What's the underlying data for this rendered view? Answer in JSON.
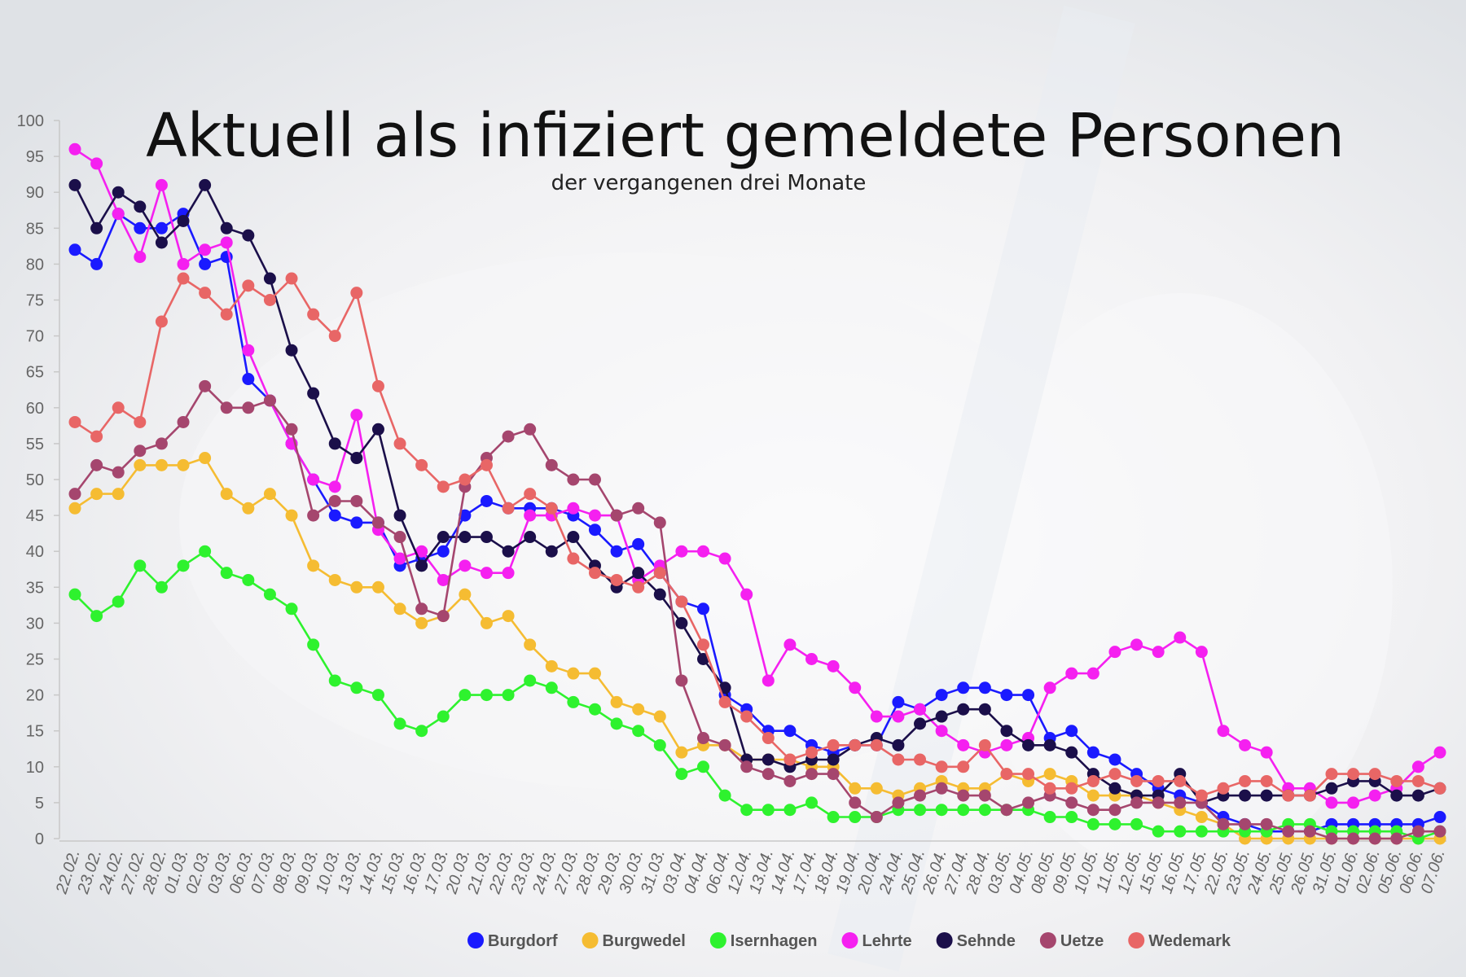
{
  "chart_data": {
    "type": "line",
    "title": "Aktuell als infiziert gemeldete Personen",
    "subtitle": "der vergangenen drei Monate",
    "xlabel": "",
    "ylabel": "",
    "ylim": [
      0,
      100
    ],
    "yticks": [
      0,
      5,
      10,
      15,
      20,
      25,
      30,
      35,
      40,
      45,
      50,
      55,
      60,
      65,
      70,
      75,
      80,
      85,
      90,
      95,
      100
    ],
    "grid": false,
    "legend_position": "bottom",
    "categories": [
      "22.02.",
      "23.02.",
      "24.02.",
      "27.02.",
      "28.02.",
      "01.03.",
      "02.03.",
      "03.03.",
      "06.03.",
      "07.03.",
      "08.03.",
      "09.03.",
      "10.03.",
      "13.03.",
      "14.03.",
      "15.03.",
      "16.03.",
      "17.03.",
      "20.03.",
      "21.03.",
      "22.03.",
      "23.03.",
      "24.03.",
      "27.03.",
      "28.03.",
      "29.03.",
      "30.03.",
      "31.03.",
      "03.04.",
      "04.04.",
      "06.04.",
      "12.04.",
      "13.04.",
      "14.04.",
      "17.04.",
      "18.04.",
      "19.04.",
      "20.04.",
      "24.04.",
      "25.04.",
      "26.04.",
      "27.04.",
      "28.04.",
      "03.05.",
      "04.05.",
      "08.05.",
      "09.05.",
      "10.05.",
      "11.05.",
      "12.05.",
      "15.05.",
      "16.05.",
      "17.05.",
      "22.05.",
      "23.05.",
      "24.05.",
      "25.05.",
      "26.05.",
      "31.05.",
      "01.06.",
      "02.06.",
      "05.06.",
      "06.06.",
      "07.06."
    ],
    "series": [
      {
        "name": "Burgdorf",
        "color": "#1a1aff",
        "values": [
          82,
          80,
          87,
          85,
          85,
          87,
          80,
          81,
          64,
          61,
          55,
          50,
          45,
          44,
          44,
          38,
          39,
          40,
          45,
          47,
          46,
          46,
          46,
          45,
          43,
          40,
          41,
          37,
          33,
          32,
          20,
          18,
          15,
          15,
          13,
          12,
          13,
          13,
          19,
          18,
          20,
          21,
          21,
          20,
          20,
          14,
          15,
          12,
          11,
          9,
          7,
          6,
          5,
          3,
          2,
          1,
          1,
          1,
          2,
          2,
          2,
          2,
          2,
          3
        ]
      },
      {
        "name": "Burgwedel",
        "color": "#f5bc32",
        "values": [
          46,
          48,
          48,
          52,
          52,
          52,
          53,
          48,
          46,
          48,
          45,
          38,
          36,
          35,
          35,
          32,
          30,
          31,
          34,
          30,
          31,
          27,
          24,
          23,
          23,
          19,
          18,
          17,
          12,
          13,
          13,
          11,
          11,
          11,
          10,
          10,
          7,
          7,
          6,
          7,
          8,
          7,
          7,
          9,
          8,
          9,
          8,
          6,
          6,
          6,
          5,
          4,
          3,
          2,
          0,
          0,
          0,
          0,
          0,
          0,
          0,
          0,
          0,
          0
        ]
      },
      {
        "name": "Isernhagen",
        "color": "#2ef22e",
        "values": [
          34,
          31,
          33,
          38,
          35,
          38,
          40,
          37,
          36,
          34,
          32,
          27,
          22,
          21,
          20,
          16,
          15,
          17,
          20,
          20,
          20,
          22,
          21,
          19,
          18,
          16,
          15,
          13,
          9,
          10,
          6,
          4,
          4,
          4,
          5,
          3,
          3,
          3,
          4,
          4,
          4,
          4,
          4,
          4,
          4,
          3,
          3,
          2,
          2,
          2,
          1,
          1,
          1,
          1,
          1,
          1,
          2,
          2,
          1,
          1,
          1,
          1,
          0,
          1
        ]
      },
      {
        "name": "Lehrte",
        "color": "#f520f0",
        "values": [
          96,
          94,
          87,
          81,
          91,
          80,
          82,
          83,
          68,
          61,
          55,
          50,
          49,
          59,
          43,
          39,
          40,
          36,
          38,
          37,
          37,
          45,
          45,
          46,
          45,
          45,
          36,
          38,
          40,
          40,
          39,
          34,
          22,
          27,
          25,
          24,
          21,
          17,
          17,
          18,
          15,
          13,
          12,
          13,
          14,
          21,
          23,
          23,
          26,
          27,
          26,
          28,
          26,
          15,
          13,
          12,
          7,
          7,
          5,
          5,
          6,
          7,
          10,
          12
        ]
      },
      {
        "name": "Sehnde",
        "color": "#1b0f4a",
        "values": [
          91,
          85,
          90,
          88,
          83,
          86,
          91,
          85,
          84,
          78,
          68,
          62,
          55,
          53,
          57,
          45,
          38,
          42,
          42,
          42,
          40,
          42,
          40,
          42,
          38,
          35,
          37,
          34,
          30,
          25,
          21,
          11,
          11,
          10,
          11,
          11,
          13,
          14,
          13,
          16,
          17,
          18,
          18,
          15,
          13,
          13,
          12,
          9,
          7,
          6,
          6,
          9,
          5,
          6,
          6,
          6,
          6,
          6,
          7,
          8,
          8,
          6,
          6,
          7
        ]
      },
      {
        "name": "Uetze",
        "color": "#a5466e",
        "values": [
          48,
          52,
          51,
          54,
          55,
          58,
          63,
          60,
          60,
          61,
          57,
          45,
          47,
          47,
          44,
          42,
          32,
          31,
          49,
          53,
          56,
          57,
          52,
          50,
          50,
          45,
          46,
          44,
          22,
          14,
          13,
          10,
          9,
          8,
          9,
          9,
          5,
          3,
          5,
          6,
          7,
          6,
          6,
          4,
          5,
          6,
          5,
          4,
          4,
          5,
          5,
          5,
          5,
          2,
          2,
          2,
          1,
          1,
          0,
          0,
          0,
          0,
          1,
          1
        ]
      },
      {
        "name": "Wedemark",
        "color": "#e86666",
        "values": [
          58,
          56,
          60,
          58,
          72,
          78,
          76,
          73,
          77,
          75,
          78,
          73,
          70,
          76,
          63,
          55,
          52,
          49,
          50,
          52,
          46,
          48,
          46,
          39,
          37,
          36,
          35,
          37,
          33,
          27,
          19,
          17,
          14,
          11,
          12,
          13,
          13,
          13,
          11,
          11,
          10,
          10,
          13,
          9,
          9,
          7,
          7,
          8,
          9,
          8,
          8,
          8,
          6,
          7,
          8,
          8,
          6,
          6,
          9,
          9,
          9,
          8,
          8,
          7
        ]
      }
    ]
  }
}
